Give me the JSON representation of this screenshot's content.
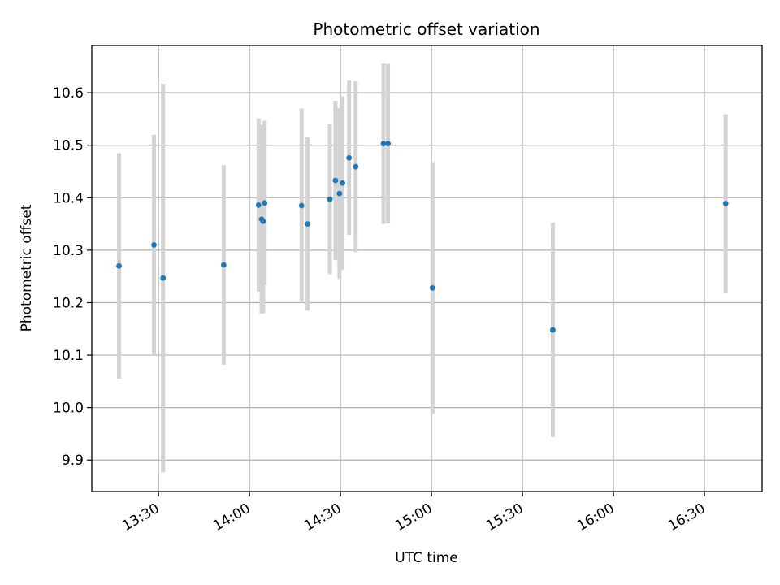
{
  "chart_data": {
    "type": "scatter",
    "title": "Photometric offset variation",
    "xlabel": "UTC time",
    "ylabel": "Photometric offset",
    "x_ticks": [
      "13:30",
      "14:00",
      "14:30",
      "15:00",
      "15:30",
      "16:00",
      "16:30"
    ],
    "y_ticks": [
      "9.9",
      "10.0",
      "10.1",
      "10.2",
      "10.3",
      "10.4",
      "10.5",
      "10.6"
    ],
    "xlim": [
      "13:08",
      "16:49"
    ],
    "ylim": [
      9.84,
      10.69
    ],
    "grid": true,
    "colors": {
      "point": "#1f77b4",
      "errorbar": "#d3d3d3",
      "grid": "#b0b0b0"
    },
    "points": [
      {
        "x": "13:17:00",
        "y": 10.27,
        "yerr": 0.215
      },
      {
        "x": "13:28:30",
        "y": 10.31,
        "yerr": 0.21
      },
      {
        "x": "13:31:30",
        "y": 10.247,
        "yerr": 0.37
      },
      {
        "x": "13:51:30",
        "y": 10.272,
        "yerr": 0.19
      },
      {
        "x": "14:03:00",
        "y": 10.386,
        "yerr": 0.165
      },
      {
        "x": "14:04:00",
        "y": 10.359,
        "yerr": 0.18
      },
      {
        "x": "14:04:30",
        "y": 10.355,
        "yerr": 0.175
      },
      {
        "x": "14:05:00",
        "y": 10.39,
        "yerr": 0.157
      },
      {
        "x": "14:17:10",
        "y": 10.385,
        "yerr": 0.185
      },
      {
        "x": "14:19:10",
        "y": 10.35,
        "yerr": 0.165
      },
      {
        "x": "14:26:30",
        "y": 10.397,
        "yerr": 0.143
      },
      {
        "x": "14:28:20",
        "y": 10.433,
        "yerr": 0.152
      },
      {
        "x": "14:29:40",
        "y": 10.408,
        "yerr": 0.163
      },
      {
        "x": "14:30:40",
        "y": 10.428,
        "yerr": 0.165
      },
      {
        "x": "14:32:50",
        "y": 10.476,
        "yerr": 0.147
      },
      {
        "x": "14:35:00",
        "y": 10.459,
        "yerr": 0.163
      },
      {
        "x": "14:44:10",
        "y": 10.503,
        "yerr": 0.153
      },
      {
        "x": "14:45:40",
        "y": 10.503,
        "yerr": 0.152
      },
      {
        "x": "15:00:20",
        "y": 10.228,
        "yerr": 0.24
      },
      {
        "x": "15:40:00",
        "y": 10.148,
        "yerr": 0.204
      },
      {
        "x": "16:37:00",
        "y": 10.389,
        "yerr": 0.17
      }
    ]
  }
}
